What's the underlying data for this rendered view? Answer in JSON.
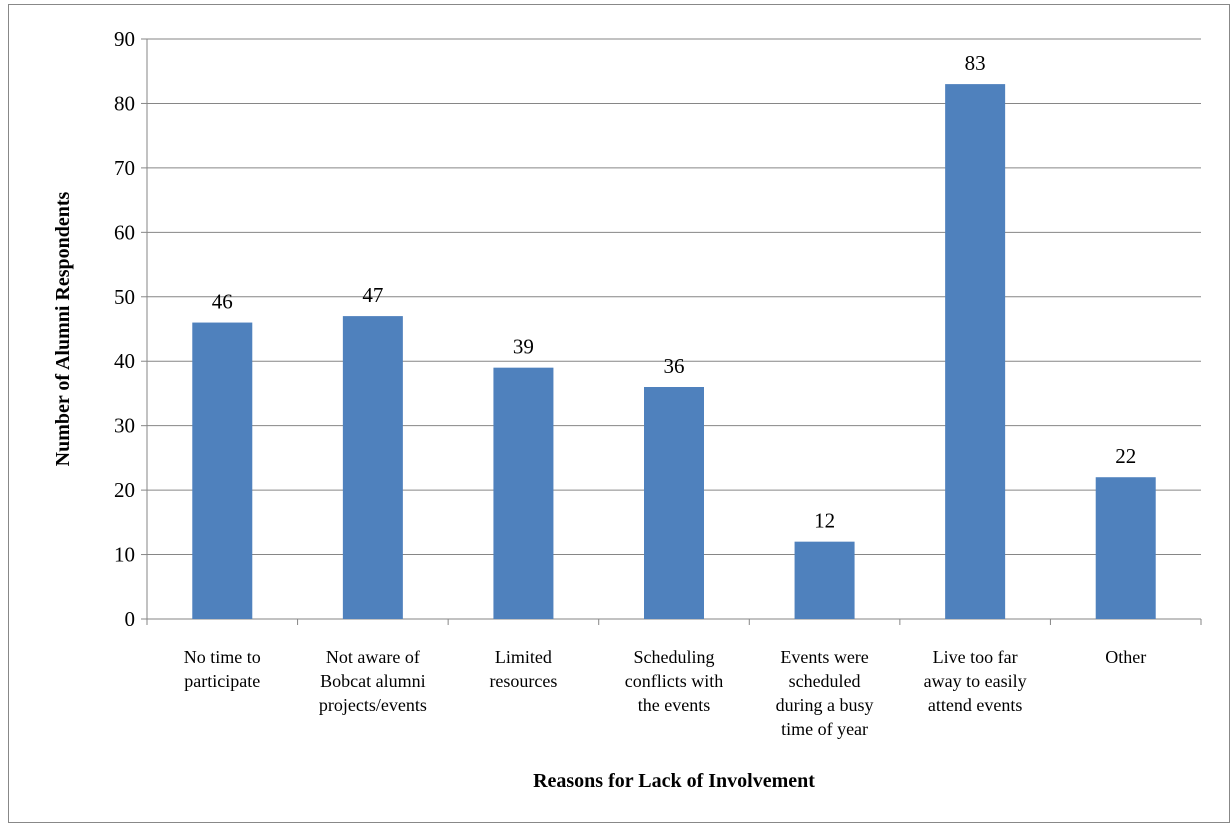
{
  "chart_data": {
    "type": "bar",
    "title": "",
    "xlabel": "Reasons for Lack of Involvement",
    "ylabel": "Number of Alumni Respondents",
    "ylim": [
      0,
      90
    ],
    "yticks": [
      0,
      10,
      20,
      30,
      40,
      50,
      60,
      70,
      80,
      90
    ],
    "grid": true,
    "legend": "none",
    "categories": [
      [
        "No time to",
        "participate"
      ],
      [
        "Not aware of",
        "Bobcat alumni",
        "projects/events"
      ],
      [
        "Limited",
        "resources"
      ],
      [
        "Scheduling",
        "conflicts with",
        "the events"
      ],
      [
        "Events were",
        "scheduled",
        "during a busy",
        "time of year"
      ],
      [
        "Live too far",
        "away to easily",
        "attend events"
      ],
      [
        "Other"
      ]
    ],
    "values": [
      46,
      47,
      39,
      36,
      12,
      83,
      22
    ],
    "bar_color": "#4f81bd",
    "grid_color": "#868686"
  }
}
